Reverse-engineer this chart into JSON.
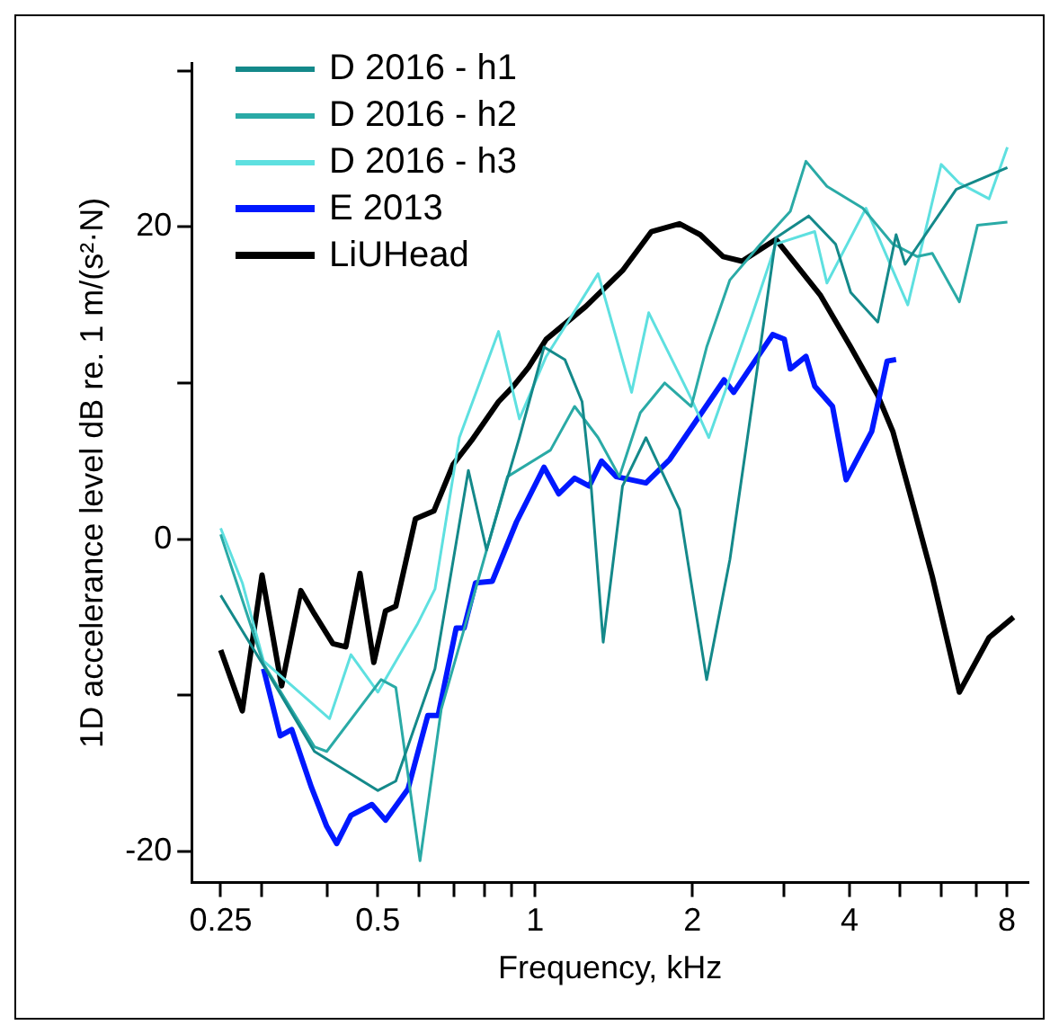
{
  "chart_data": {
    "type": "line",
    "xlabel": "Frequency, kHz",
    "ylabel": "1D accelerance level dB re. 1 m/(s²·N)",
    "log": "x",
    "grid": false,
    "legend": "top left",
    "marker": "none",
    "xlim": [
      0.22,
      8.8
    ],
    "ylim": [
      -22,
      30.5
    ],
    "xticks": [
      0.25,
      {
        "value": 0.3,
        "label": null
      },
      {
        "value": 0.4,
        "label": null
      },
      0.5,
      {
        "value": 0.6,
        "label": null
      },
      {
        "value": 0.7,
        "label": null
      },
      {
        "value": 0.8,
        "label": null
      },
      {
        "value": 0.9,
        "label": null
      },
      1,
      2,
      {
        "value": 3,
        "label": null
      },
      4,
      {
        "value": 5,
        "label": null
      },
      {
        "value": 6,
        "label": null
      },
      {
        "value": 7,
        "label": null
      },
      8
    ],
    "yticks": [
      -20,
      {
        "value": -10,
        "label": null
      },
      0,
      {
        "value": 10,
        "label": null
      },
      20,
      {
        "value": 30,
        "label": null
      }
    ],
    "series": [
      {
        "name": "D 2016 - h1",
        "color": "#14898a",
        "x": [
          0.25,
          0.302,
          0.378,
          0.5,
          0.541,
          0.643,
          0.745,
          0.807,
          0.933,
          1.04,
          1.14,
          1.23,
          1.28,
          1.35,
          1.47,
          1.63,
          1.89,
          2.13,
          2.36,
          2.53,
          2.89,
          3.34,
          3.76,
          4.02,
          4.53,
          4.91,
          5.11,
          6.4,
          7.4,
          8.02
        ],
        "values": [
          -3.6,
          -8.1,
          -13.6,
          -16.1,
          -15.5,
          -8.3,
          4.4,
          -0.7,
          6.5,
          12.3,
          11.5,
          8.8,
          3.4,
          -6.6,
          3.4,
          6.5,
          1.9,
          -9.0,
          -1.3,
          5.7,
          19.3,
          20.7,
          18.9,
          15.8,
          13.9,
          19.5,
          17.6,
          22.4,
          23.3,
          23.8
        ]
      },
      {
        "name": "D 2016 - h2",
        "color": "#2aaaa6",
        "x": [
          0.25,
          0.302,
          0.378,
          0.399,
          0.507,
          0.541,
          0.602,
          0.661,
          0.775,
          0.885,
          1.07,
          1.19,
          1.32,
          1.45,
          1.59,
          1.77,
          1.99,
          2.13,
          2.36,
          2.7,
          3.08,
          3.3,
          3.62,
          4.24,
          4.84,
          5.39,
          5.76,
          6.49,
          7.03,
          8.02
        ],
        "values": [
          0.3,
          -8.0,
          -13.3,
          -13.6,
          -9.0,
          -9.5,
          -20.6,
          -10.9,
          -2.8,
          4.0,
          5.7,
          8.5,
          6.5,
          4.0,
          8.1,
          10.0,
          8.5,
          12.3,
          16.6,
          18.9,
          21.0,
          24.2,
          22.6,
          21.2,
          18.9,
          18.1,
          18.3,
          15.2,
          20.1,
          20.3
        ]
      },
      {
        "name": "D 2016 - h3",
        "color": "#5ee0e0",
        "x": [
          0.25,
          0.275,
          0.302,
          0.404,
          0.444,
          0.5,
          0.594,
          0.643,
          0.716,
          0.851,
          0.933,
          1.05,
          1.32,
          1.53,
          1.65,
          1.99,
          2.15,
          2.6,
          2.89,
          3.43,
          3.62,
          4.3,
          5.17,
          5.99,
          6.49,
          7.4,
          8.02
        ],
        "values": [
          0.7,
          -2.8,
          -7.8,
          -11.5,
          -7.4,
          -9.8,
          -5.5,
          -3.2,
          6.5,
          13.3,
          7.7,
          11.7,
          17.0,
          9.4,
          14.5,
          9.0,
          6.5,
          14.3,
          18.9,
          19.7,
          16.4,
          21.2,
          15.0,
          24.0,
          22.8,
          21.8,
          25.1
        ]
      },
      {
        "name": "E 2013",
        "color": "#0018ff",
        "x": [
          0.302,
          0.325,
          0.342,
          0.373,
          0.399,
          0.417,
          0.444,
          0.487,
          0.517,
          0.571,
          0.623,
          0.652,
          0.706,
          0.731,
          0.769,
          0.828,
          0.921,
          1.04,
          1.11,
          1.19,
          1.27,
          1.34,
          1.43,
          1.63,
          1.81,
          2.3,
          2.4,
          2.85,
          3.0,
          3.08,
          3.3,
          3.43,
          3.71,
          3.94,
          4.41,
          4.72,
          4.91
        ],
        "values": [
          -8.3,
          -12.6,
          -12.2,
          -15.9,
          -18.4,
          -19.5,
          -17.7,
          -17.0,
          -18.0,
          -16.0,
          -11.3,
          -11.3,
          -5.7,
          -5.7,
          -2.8,
          -2.7,
          1.1,
          4.6,
          2.9,
          3.9,
          3.4,
          5.0,
          4.0,
          3.6,
          5.1,
          10.2,
          9.4,
          13.1,
          12.8,
          10.9,
          11.7,
          9.8,
          8.5,
          3.8,
          6.9,
          11.4,
          11.5
        ]
      },
      {
        "name": "LiUHead",
        "color": "#000000",
        "x": [
          0.25,
          0.275,
          0.3,
          0.327,
          0.356,
          0.378,
          0.41,
          0.434,
          0.462,
          0.491,
          0.517,
          0.541,
          0.59,
          0.64,
          0.697,
          0.755,
          0.851,
          0.909,
          0.971,
          1.05,
          1.25,
          1.47,
          1.67,
          1.89,
          2.07,
          2.29,
          2.49,
          2.89,
          3.52,
          4.02,
          4.53,
          4.84,
          5.24,
          5.76,
          6.49,
          7.4,
          8.24
        ],
        "values": [
          -7.1,
          -11.0,
          -2.3,
          -9.4,
          -3.3,
          -4.8,
          -6.7,
          -6.9,
          -2.2,
          -7.9,
          -4.6,
          -4.3,
          1.3,
          1.8,
          4.8,
          6.3,
          8.8,
          9.8,
          11.0,
          12.8,
          14.9,
          17.2,
          19.7,
          20.2,
          19.5,
          18.1,
          17.8,
          19.2,
          15.6,
          12.3,
          9.2,
          6.9,
          2.7,
          -2.4,
          -9.8,
          -6.3,
          -5.0
        ]
      }
    ]
  }
}
